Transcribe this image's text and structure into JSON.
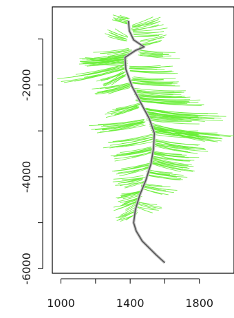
{
  "chart_data": {
    "type": "line",
    "title": "",
    "xlabel": "",
    "ylabel": "",
    "xlim": [
      950,
      2000
    ],
    "ylim": [
      -6100,
      -300
    ],
    "x_ticks": [
      1000,
      1200,
      1400,
      1600,
      1800
    ],
    "x_tick_labels": [
      "1000",
      "1400",
      "1800"
    ],
    "y_ticks": [
      -1000,
      -2000,
      -3000,
      -4000,
      -5000,
      -6000
    ],
    "y_tick_labels": [
      "-2000",
      "-4000",
      "-6000"
    ],
    "grid": false,
    "legend": "none",
    "colors": {
      "branches": "#66ee33",
      "axis": "#7a7a7a",
      "frame": "#000000"
    },
    "series": [
      {
        "style": "main-stem",
        "points": [
          [
            1390,
            -600
          ],
          [
            1395,
            -820
          ],
          [
            1420,
            -1020
          ],
          [
            1480,
            -1170
          ],
          [
            1430,
            -1250
          ],
          [
            1370,
            -1400
          ],
          [
            1375,
            -1660
          ],
          [
            1410,
            -2030
          ],
          [
            1460,
            -2380
          ],
          [
            1510,
            -2730
          ],
          [
            1540,
            -3050
          ],
          [
            1535,
            -3380
          ],
          [
            1520,
            -3720
          ],
          [
            1490,
            -4080
          ],
          [
            1455,
            -4400
          ],
          [
            1430,
            -4720
          ],
          [
            1420,
            -5000
          ],
          [
            1435,
            -5180
          ],
          [
            1470,
            -5400
          ],
          [
            1550,
            -5700
          ],
          [
            1600,
            -5870
          ]
        ]
      },
      {
        "style": "branches",
        "branches": [
          {
            "from": [
              1390,
              -620
            ],
            "to": [
              1300,
              -540
            ],
            "n": 10
          },
          {
            "from": [
              1410,
              -760
            ],
            "to": [
              1600,
              -600
            ],
            "n": 8
          },
          {
            "from": [
              1420,
              -900
            ],
            "to": [
              1620,
              -870
            ],
            "n": 6
          },
          {
            "from": [
              1380,
              -1000
            ],
            "to": [
              1250,
              -850
            ],
            "n": 8
          },
          {
            "from": [
              1460,
              -1100
            ],
            "to": [
              1640,
              -1000
            ],
            "n": 6
          },
          {
            "from": [
              1400,
              -1280
            ],
            "to": [
              1180,
              -1380
            ],
            "n": 10
          },
          {
            "from": [
              1450,
              -1300
            ],
            "to": [
              1700,
              -1350
            ],
            "n": 8
          },
          {
            "from": [
              1370,
              -1420
            ],
            "to": [
              1100,
              -1500
            ],
            "n": 14
          },
          {
            "from": [
              1380,
              -1500
            ],
            "to": [
              1080,
              -1460
            ],
            "n": 6
          },
          {
            "from": [
              1370,
              -1600
            ],
            "to": [
              980,
              -1850
            ],
            "n": 10
          },
          {
            "from": [
              1400,
              -1650
            ],
            "to": [
              1680,
              -1660
            ],
            "n": 10
          },
          {
            "from": [
              1370,
              -1750
            ],
            "to": [
              1200,
              -1950
            ],
            "n": 10
          },
          {
            "from": [
              1410,
              -1900
            ],
            "to": [
              1700,
              -1950
            ],
            "n": 12
          },
          {
            "from": [
              1400,
              -2000
            ],
            "to": [
              1180,
              -2150
            ],
            "n": 10
          },
          {
            "from": [
              1430,
              -2150
            ],
            "to": [
              1750,
              -2200
            ],
            "n": 10
          },
          {
            "from": [
              1440,
              -2300
            ],
            "to": [
              1840,
              -2350
            ],
            "n": 14
          },
          {
            "from": [
              1450,
              -2450
            ],
            "to": [
              1250,
              -2600
            ],
            "n": 10
          },
          {
            "from": [
              1490,
              -2550
            ],
            "to": [
              1950,
              -2700
            ],
            "n": 14
          },
          {
            "from": [
              1500,
              -2700
            ],
            "to": [
              1850,
              -2750
            ],
            "n": 12
          },
          {
            "from": [
              1480,
              -2800
            ],
            "to": [
              1150,
              -2950
            ],
            "n": 12
          },
          {
            "from": [
              1520,
              -2900
            ],
            "to": [
              2000,
              -3150
            ],
            "n": 14
          },
          {
            "from": [
              1530,
              -3000
            ],
            "to": [
              1900,
              -3100
            ],
            "n": 10
          },
          {
            "from": [
              1530,
              -3150
            ],
            "to": [
              1250,
              -3300
            ],
            "n": 10
          },
          {
            "from": [
              1540,
              -3250
            ],
            "to": [
              1850,
              -3400
            ],
            "n": 12
          },
          {
            "from": [
              1530,
              -3400
            ],
            "to": [
              1300,
              -3550
            ],
            "n": 10
          },
          {
            "from": [
              1530,
              -3500
            ],
            "to": [
              1780,
              -3600
            ],
            "n": 10
          },
          {
            "from": [
              1520,
              -3650
            ],
            "to": [
              1780,
              -3800
            ],
            "n": 12
          },
          {
            "from": [
              1510,
              -3750
            ],
            "to": [
              1300,
              -3900
            ],
            "n": 8
          },
          {
            "from": [
              1500,
              -3900
            ],
            "to": [
              1720,
              -4000
            ],
            "n": 10
          },
          {
            "from": [
              1480,
              -4050
            ],
            "to": [
              1300,
              -4150
            ],
            "n": 10
          },
          {
            "from": [
              1470,
              -4200
            ],
            "to": [
              1680,
              -4300
            ],
            "n": 8
          },
          {
            "from": [
              1460,
              -4350
            ],
            "to": [
              1320,
              -4450
            ],
            "n": 10
          },
          {
            "from": [
              1450,
              -4500
            ],
            "to": [
              1300,
              -4650
            ],
            "n": 10
          },
          {
            "from": [
              1440,
              -4600
            ],
            "to": [
              1600,
              -4700
            ],
            "n": 6
          },
          {
            "from": [
              1435,
              -4750
            ],
            "to": [
              1320,
              -4900
            ],
            "n": 8
          }
        ]
      }
    ]
  }
}
